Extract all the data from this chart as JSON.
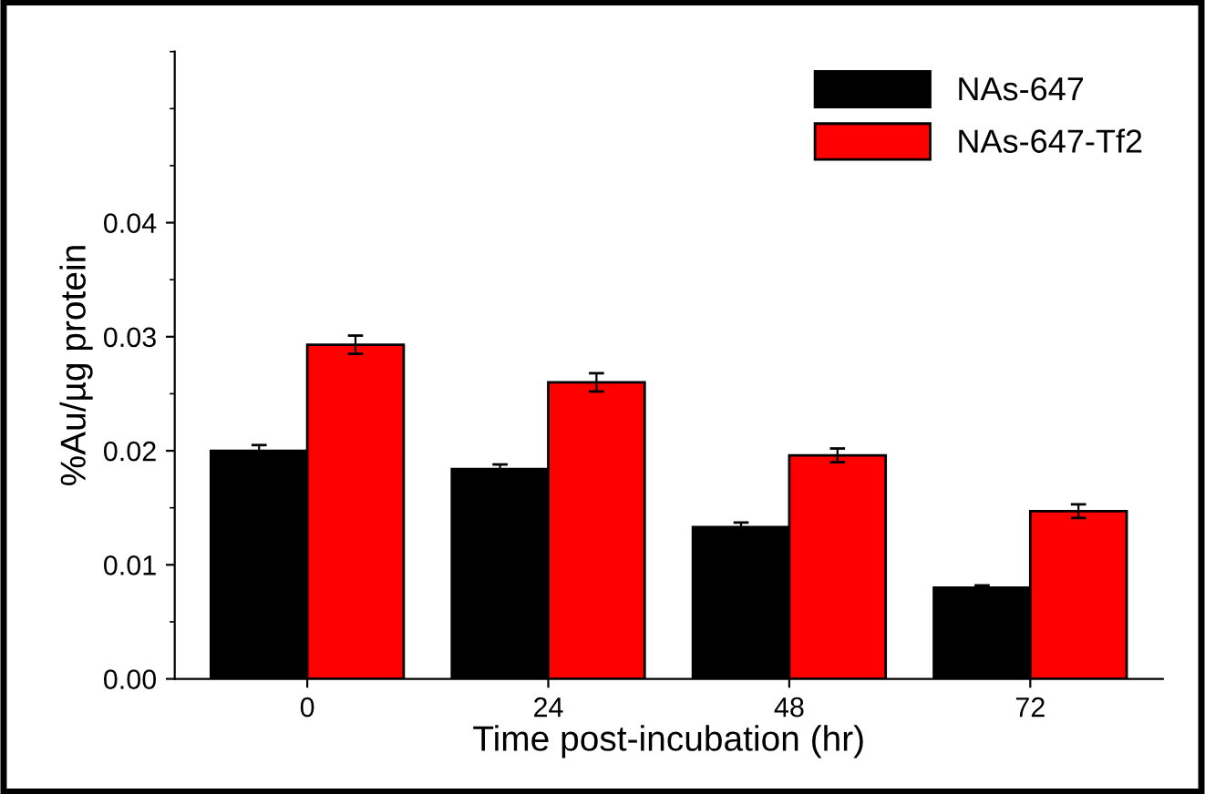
{
  "chart_data": {
    "type": "bar",
    "xlabel": "Time post-incubation (hr)",
    "ylabel": "%Au/µg protein",
    "categories": [
      "0",
      "24",
      "48",
      "72"
    ],
    "series": [
      {
        "name": "NAs-647",
        "color": "#000000",
        "values": [
          0.02,
          0.0184,
          0.0133,
          0.008
        ],
        "errors": [
          0.0005,
          0.0004,
          0.0004,
          0.0002
        ]
      },
      {
        "name": "NAs-647-Tf2",
        "color": "#ff0000",
        "values": [
          0.0293,
          0.026,
          0.0196,
          0.0147
        ],
        "errors": [
          0.0008,
          0.0008,
          0.0006,
          0.0006
        ]
      }
    ],
    "ylim": [
      0,
      0.055
    ],
    "yticks": [
      {
        "value": 0,
        "label": "0.00"
      },
      {
        "value": 0.01,
        "label": "0.01"
      },
      {
        "value": 0.02,
        "label": "0.02"
      },
      {
        "value": 0.03,
        "label": "0.03"
      },
      {
        "value": 0.04,
        "label": "0.04"
      }
    ],
    "legend": "top right",
    "grid": false
  }
}
